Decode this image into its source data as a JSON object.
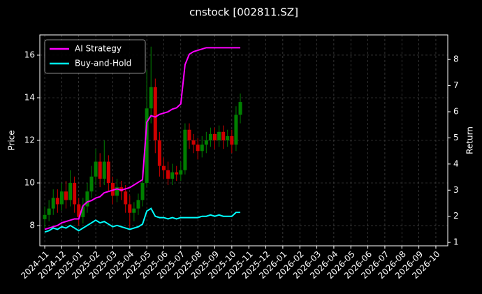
{
  "chart_data": {
    "type": "candlestick",
    "title": "cnstock [002811.SZ]",
    "ylabel": "Price",
    "y2label": "Return",
    "x": [
      0,
      0.25,
      0.5,
      0.75,
      1,
      1.25,
      1.5,
      1.75,
      2,
      2.25,
      2.5,
      2.75,
      3,
      3.25,
      3.5,
      3.75,
      4,
      4.25,
      4.5,
      4.75,
      5,
      5.25,
      5.5,
      5.75,
      6,
      6.25,
      6.5,
      6.75,
      7,
      7.25,
      7.5,
      7.75,
      8,
      8.25,
      8.5,
      8.75,
      9,
      9.25,
      9.5,
      9.75,
      10,
      10.25,
      10.5,
      10.75,
      11,
      11.25,
      11.5
    ],
    "open": [
      8.3,
      8.5,
      8.8,
      9.3,
      9.0,
      9.6,
      9.2,
      10.0,
      9.0,
      8.4,
      8.9,
      9.6,
      10.3,
      11.0,
      10.2,
      11.0,
      10.0,
      9.4,
      9.8,
      9.6,
      9.0,
      8.6,
      8.8,
      9.2,
      10.0,
      13.5,
      14.5,
      12.0,
      10.8,
      10.6,
      10.2,
      10.5,
      10.4,
      10.6,
      12.5,
      12.0,
      11.8,
      11.5,
      11.8,
      12.0,
      12.3,
      12.0,
      12.4,
      12.0,
      12.2,
      11.8,
      13.2
    ],
    "high": [
      8.9,
      9.2,
      9.7,
      9.7,
      10.0,
      10.1,
      10.6,
      10.3,
      9.3,
      9.3,
      10.0,
      10.8,
      11.6,
      11.4,
      12.0,
      11.3,
      10.3,
      10.2,
      10.1,
      9.9,
      9.4,
      9.1,
      9.5,
      10.6,
      15.3,
      16.4,
      14.9,
      12.4,
      11.2,
      11.0,
      10.9,
      10.8,
      11.0,
      12.8,
      12.8,
      12.3,
      12.1,
      12.2,
      12.4,
      12.6,
      12.6,
      12.7,
      12.7,
      12.5,
      12.5,
      13.6,
      14.2
    ],
    "low": [
      7.9,
      8.2,
      8.5,
      8.6,
      8.7,
      8.8,
      8.9,
      8.6,
      8.0,
      8.1,
      8.6,
      9.3,
      9.9,
      9.8,
      9.9,
      9.6,
      9.0,
      9.1,
      9.2,
      8.6,
      7.9,
      8.2,
      8.5,
      8.9,
      9.8,
      12.8,
      11.4,
      10.3,
      10.2,
      9.9,
      9.9,
      10.1,
      10.1,
      10.4,
      11.6,
      11.4,
      11.1,
      11.2,
      11.4,
      11.7,
      11.6,
      11.7,
      11.6,
      11.7,
      11.4,
      11.5,
      12.8
    ],
    "close": [
      8.5,
      8.8,
      9.3,
      9.0,
      9.6,
      9.2,
      10.0,
      9.0,
      8.4,
      8.9,
      9.6,
      10.3,
      11.0,
      10.2,
      11.0,
      10.0,
      9.4,
      9.8,
      9.6,
      9.0,
      8.6,
      8.8,
      9.2,
      10.0,
      13.5,
      14.5,
      12.0,
      10.8,
      10.6,
      10.2,
      10.5,
      10.4,
      10.6,
      12.5,
      12.0,
      11.8,
      11.5,
      11.8,
      12.0,
      12.3,
      12.0,
      12.4,
      12.0,
      12.2,
      11.8,
      13.2,
      13.8
    ],
    "up_color": "#008000",
    "down_color": "#d00000",
    "series": [
      {
        "name": "AI Strategy",
        "color": "#ff00ff",
        "axis": "y2",
        "values": [
          1.5,
          1.55,
          1.6,
          1.65,
          1.75,
          1.8,
          1.85,
          1.9,
          1.9,
          2.4,
          2.55,
          2.6,
          2.7,
          2.75,
          2.9,
          2.95,
          3.0,
          3.05,
          3.0,
          3.05,
          3.1,
          3.2,
          3.3,
          3.4,
          5.6,
          5.85,
          5.8,
          5.9,
          5.95,
          6.0,
          6.1,
          6.15,
          6.3,
          7.8,
          8.2,
          8.3,
          8.35,
          8.4,
          8.45,
          8.45,
          8.45,
          8.45,
          8.45,
          8.45,
          8.45,
          8.45,
          8.45
        ]
      },
      {
        "name": "Buy-and-Hold",
        "color": "#00ffff",
        "axis": "y2",
        "values": [
          1.4,
          1.45,
          1.55,
          1.5,
          1.6,
          1.55,
          1.65,
          1.55,
          1.45,
          1.55,
          1.65,
          1.75,
          1.85,
          1.75,
          1.8,
          1.7,
          1.6,
          1.65,
          1.6,
          1.55,
          1.5,
          1.55,
          1.6,
          1.7,
          2.2,
          2.3,
          2.0,
          1.95,
          1.95,
          1.9,
          1.95,
          1.9,
          1.95,
          1.95,
          1.95,
          1.95,
          1.95,
          2.0,
          2.0,
          2.05,
          2.0,
          2.05,
          2.0,
          2.0,
          2.0,
          2.15,
          2.15
        ]
      }
    ],
    "xlim": [
      -0.29,
      23.7
    ],
    "xticks": [
      {
        "value": 0,
        "label": "2024-11"
      },
      {
        "value": 1,
        "label": "2024-12"
      },
      {
        "value": 2,
        "label": "2025-01"
      },
      {
        "value": 3,
        "label": "2025-02"
      },
      {
        "value": 4,
        "label": "2025-03"
      },
      {
        "value": 5,
        "label": "2025-04"
      },
      {
        "value": 6,
        "label": "2025-05"
      },
      {
        "value": 7,
        "label": "2025-06"
      },
      {
        "value": 8,
        "label": "2025-07"
      },
      {
        "value": 9,
        "label": "2025-08"
      },
      {
        "value": 10,
        "label": "2025-09"
      },
      {
        "value": 11,
        "label": "2025-10"
      },
      {
        "value": 12,
        "label": "2025-11"
      },
      {
        "value": 13,
        "label": "2025-12"
      },
      {
        "value": 14,
        "label": "2026-01"
      },
      {
        "value": 15,
        "label": "2026-02"
      },
      {
        "value": 16,
        "label": "2026-03"
      },
      {
        "value": 17,
        "label": "2026-04"
      },
      {
        "value": 18,
        "label": "2026-05"
      },
      {
        "value": 19,
        "label": "2026-06"
      },
      {
        "value": 20,
        "label": "2026-07"
      },
      {
        "value": 21,
        "label": "2026-08"
      },
      {
        "value": 22,
        "label": "2026-09"
      },
      {
        "value": 23,
        "label": "2026-10"
      }
    ],
    "ylim": [
      7.05,
      16.95
    ],
    "yticks": [
      8,
      10,
      12,
      14,
      16
    ],
    "y2lim": [
      0.87,
      8.94
    ],
    "y2ticks": [
      1,
      2,
      3,
      4,
      5,
      6,
      7,
      8
    ],
    "grid": true,
    "legend": "upper left"
  }
}
